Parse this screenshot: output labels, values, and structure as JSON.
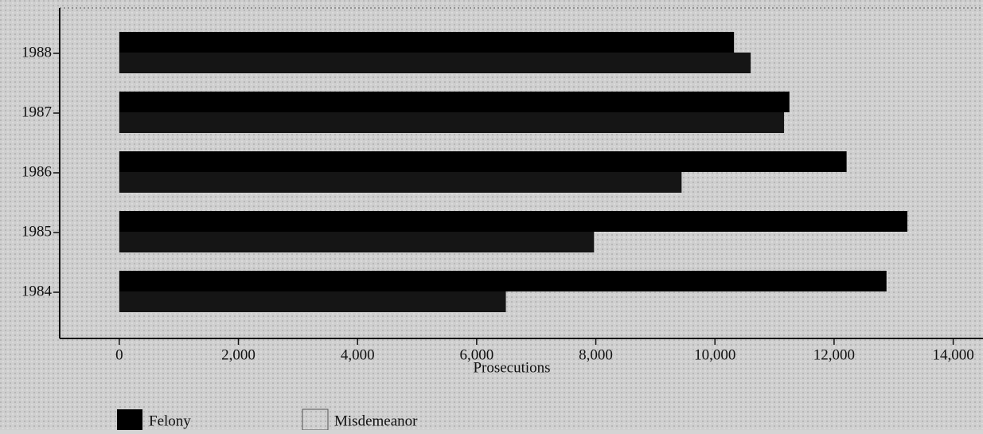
{
  "chart_data": {
    "type": "barh",
    "categories": [
      "1984",
      "1985",
      "1986",
      "1987",
      "1988"
    ],
    "series": [
      {
        "name": "Felony",
        "color": "#000000",
        "values": [
          12880,
          13230,
          12210,
          11250,
          10320
        ]
      },
      {
        "name": "Misdemeanor",
        "color": "#151515",
        "values": [
          6490,
          7970,
          9440,
          11160,
          10600
        ]
      }
    ],
    "xlabel": "Prosecutions",
    "xlim": [
      -1000,
      14500
    ],
    "xticks": [
      0,
      {
        "value": 2000,
        "label": "2,000"
      },
      {
        "value": 4000,
        "label": "4,000"
      },
      {
        "value": 6000,
        "label": "6,000"
      },
      {
        "value": 8000,
        "label": "8,000"
      },
      {
        "value": 10000,
        "label": "10,000"
      },
      {
        "value": 12000,
        "label": "12,000"
      },
      {
        "value": 14000,
        "label": "14,000"
      }
    ],
    "legend": "bottom"
  }
}
